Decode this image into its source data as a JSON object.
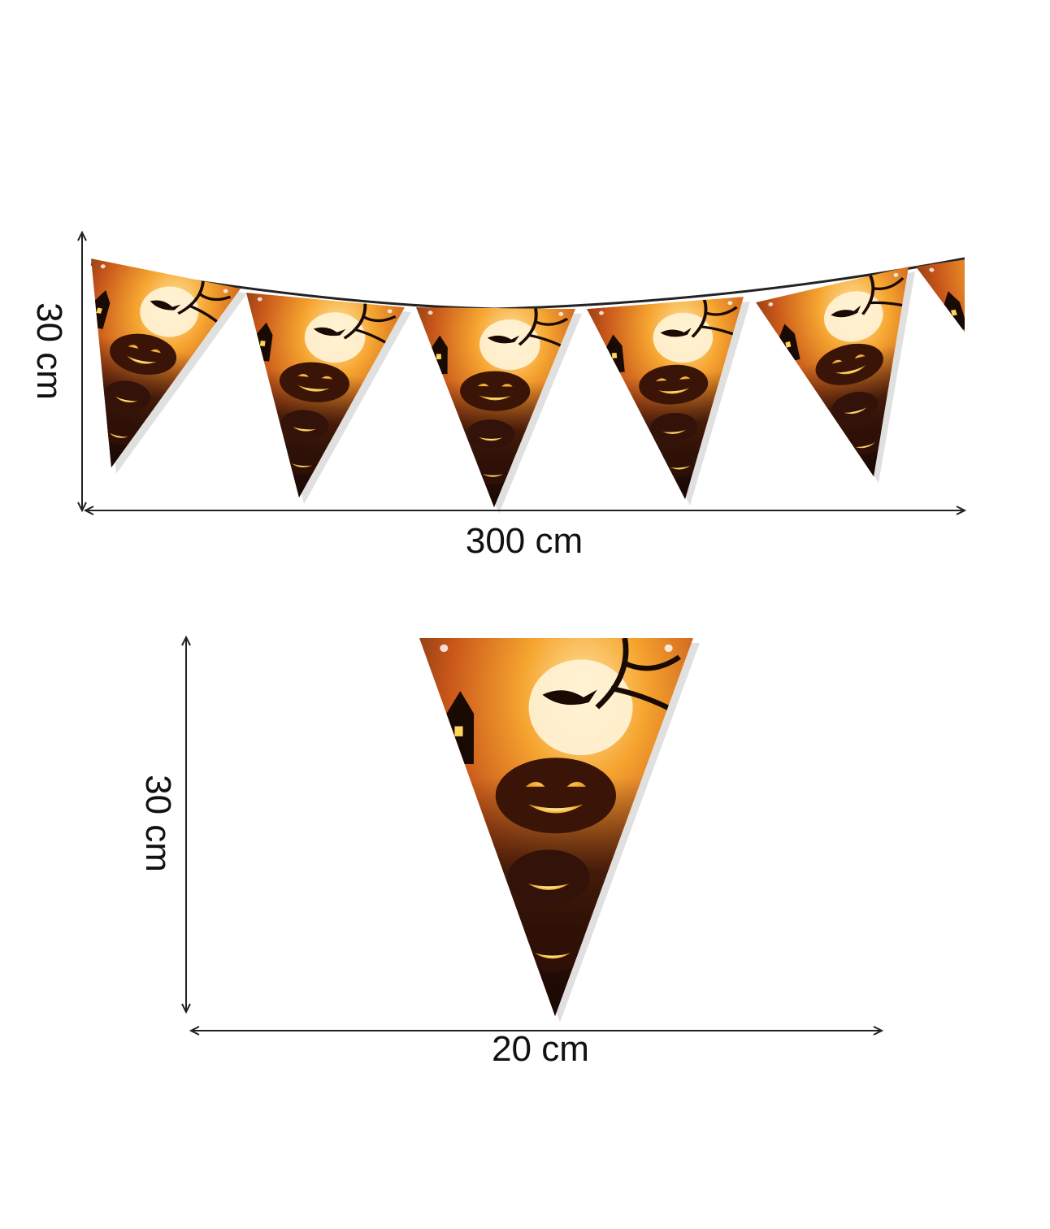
{
  "banner": {
    "height_label": "30 cm",
    "width_label": "300 cm"
  },
  "single_flag": {
    "height_label": "30 cm",
    "width_label": "20 cm"
  }
}
